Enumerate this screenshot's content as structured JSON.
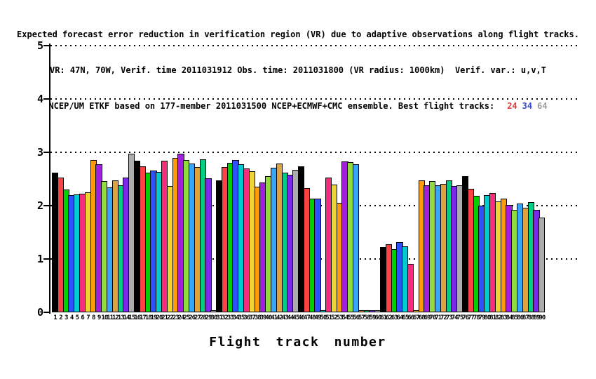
{
  "title": {
    "line1": "Expected forecast error reduction in verification region (VR) due to adaptive observations along flight tracks.",
    "line2": "VR: 47N, 70W, Verif. time 2011031912 Obs. time: 2011031800 (VR radius: 1000km)  Verif. var.: u,v,T",
    "line3_prefix": "NCEP/UM ETKF based on 177-member 2011031500 NCEP+ECMWF+CMC ensemble. Best flight tracks:",
    "best_tracks": [
      {
        "label": "24",
        "color": "#e03c3c"
      },
      {
        "label": "34",
        "color": "#3a4ad8"
      },
      {
        "label": "64",
        "color": "#9c9c9c"
      }
    ]
  },
  "chart_data": {
    "type": "bar",
    "title": "Expected forecast error reduction in verification region (VR) due to adaptive observations along flight tracks.",
    "subtitle1": "VR: 47N, 70W, Verif. time 2011031912 Obs. time: 2011031800 (VR radius: 1000km)  Verif. var.: u,v,T",
    "subtitle2": "NCEP/UM ETKF based on 177-member 2011031500 NCEP+ECMWF+CMC ensemble. Best flight tracks: 24 34 64",
    "xlabel": "Flight track number",
    "ylabel": "",
    "ylim": [
      0,
      5
    ],
    "yticks": [
      0,
      1,
      2,
      3,
      4,
      5
    ],
    "grid": "horizontal-dotted-at-integers",
    "legend": "none",
    "x": [
      1,
      2,
      3,
      4,
      5,
      6,
      7,
      8,
      9,
      10,
      11,
      12,
      13,
      14,
      15,
      16,
      17,
      18,
      19,
      20,
      21,
      22,
      23,
      24,
      25,
      26,
      27,
      28,
      29,
      30,
      31,
      32,
      33,
      34,
      35,
      36,
      37,
      38,
      39,
      40,
      41,
      42,
      43,
      44,
      45,
      46,
      47,
      48,
      49,
      50,
      51,
      52,
      53,
      54,
      55,
      56,
      57,
      58,
      59,
      60,
      61,
      62,
      63,
      64,
      65,
      66,
      67,
      68,
      69,
      70,
      71,
      72,
      73,
      74,
      75,
      76,
      77,
      78,
      79,
      80,
      81,
      82,
      83,
      84,
      85,
      86,
      87,
      88,
      89,
      90
    ],
    "values": [
      2.62,
      2.52,
      2.3,
      2.2,
      2.21,
      2.22,
      2.25,
      2.85,
      2.78,
      2.46,
      2.34,
      2.48,
      2.38,
      2.52,
      2.98,
      2.84,
      2.74,
      2.62,
      2.66,
      2.63,
      2.84,
      2.37,
      2.9,
      2.98,
      2.85,
      2.79,
      2.73,
      2.87,
      2.51,
      0.02,
      2.48,
      2.73,
      2.8,
      2.86,
      2.77,
      2.7,
      2.65,
      2.36,
      2.44,
      2.55,
      2.71,
      2.79,
      2.62,
      2.58,
      2.67,
      2.74,
      2.33,
      2.13,
      2.13,
      0.02,
      2.52,
      2.4,
      2.05,
      2.83,
      2.81,
      2.78,
      0.02,
      0.02,
      0.02,
      0.02,
      1.22,
      1.27,
      1.19,
      1.31,
      1.24,
      0.91,
      0.02,
      2.48,
      2.38,
      2.46,
      2.38,
      2.41,
      2.48,
      2.37,
      2.38,
      2.55,
      2.32,
      2.19,
      2.0,
      2.2,
      2.24,
      2.08,
      2.13,
      2.01,
      1.92,
      2.04,
      1.96,
      2.06,
      1.92,
      1.78
    ],
    "near_zero_tracks": [
      30,
      50,
      57,
      58,
      59,
      60,
      67
    ],
    "color_cycle_period": 15,
    "color_cycle": [
      "#000000",
      "#fb4343",
      "#00cf00",
      "#2e51fb",
      "#00cbce",
      "#f82c7c",
      "#efd435",
      "#ff9c0a",
      "#a21fde",
      "#90dc3e",
      "#38a6f6",
      "#e0a23e",
      "#02ce83",
      "#7b28e9",
      "#acacac"
    ]
  }
}
